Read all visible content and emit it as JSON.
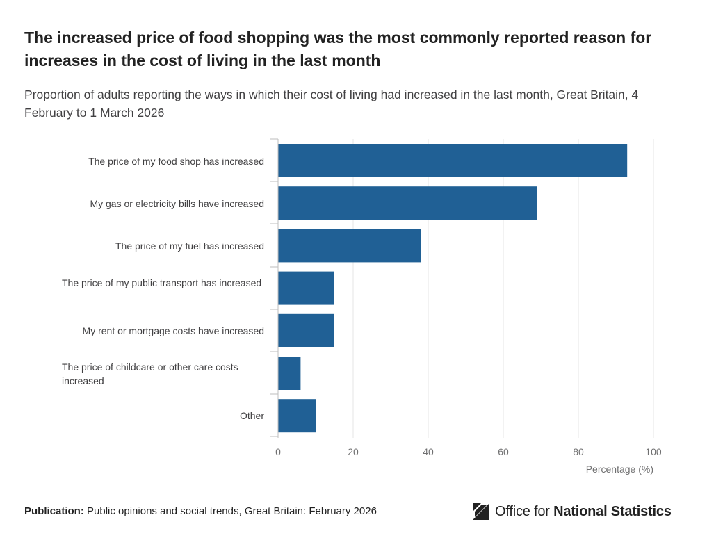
{
  "title": "The increased price of food shopping was the most commonly reported reason for increases in the cost of living in the last month",
  "subtitle": "Proportion of adults reporting the ways in which their cost of living had increased in the last month, Great Britain, 4 February to 1 March 2026",
  "chart_data": {
    "type": "bar",
    "orientation": "horizontal",
    "categories": [
      "The price of my food shop has increased",
      "My gas or electricity bills have increased",
      "The price of my fuel has increased",
      "The price of my public transport has increased",
      "My rent or mortgage costs have increased",
      "The price of childcare or other care costs increased",
      "Other"
    ],
    "values": [
      93,
      69,
      38,
      15,
      15,
      6,
      10
    ],
    "xlabel": "Percentage (%)",
    "ylabel": "",
    "xlim": [
      0,
      100
    ],
    "xticks": [
      0,
      20,
      40,
      60,
      80,
      100
    ],
    "grid": true,
    "bar_color": "#206095"
  },
  "footer": {
    "publication_label": "Publication:",
    "publication_text": "Public opinions and social trends, Great Britain: February 2026"
  },
  "logo": {
    "prefix": "Office for",
    "name": "National Statistics",
    "icon": "ons-logo-icon"
  }
}
